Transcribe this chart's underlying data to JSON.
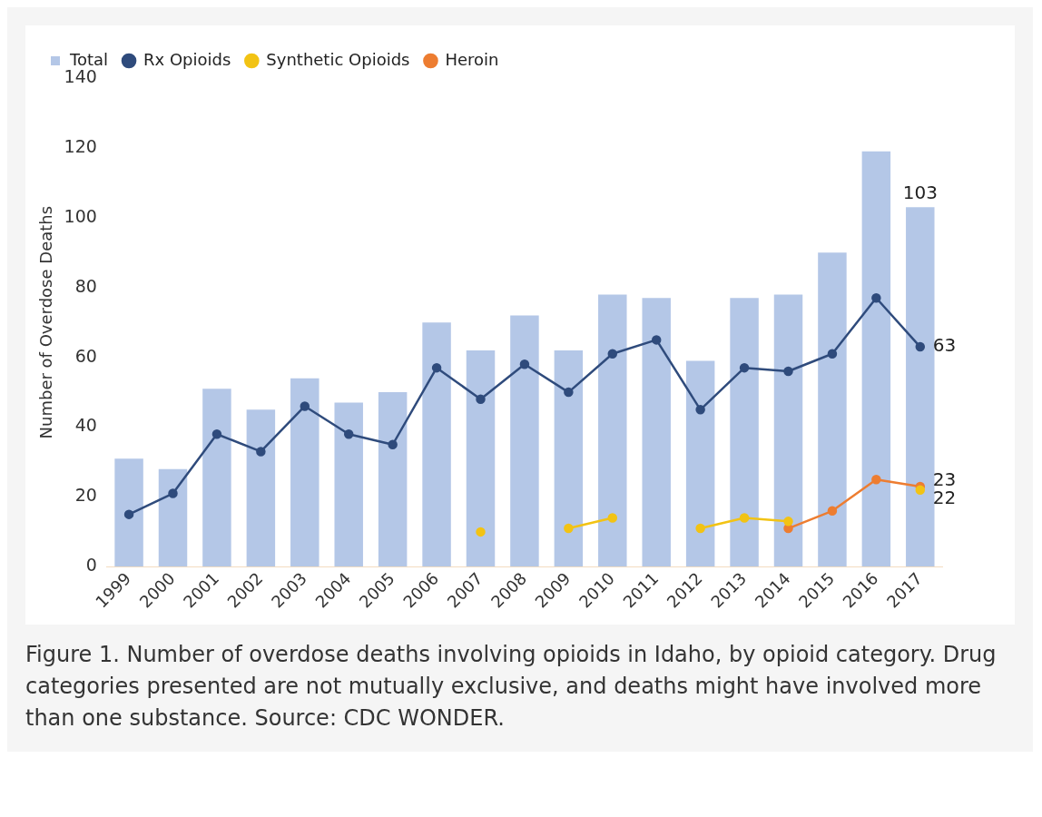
{
  "chart_data": {
    "type": "bar",
    "ylabel": "Number of Overdose Deaths",
    "categories": [
      "1999",
      "2000",
      "2001",
      "2002",
      "2003",
      "2004",
      "2005",
      "2006",
      "2007",
      "2008",
      "2009",
      "2010",
      "2011",
      "2012",
      "2013",
      "2014",
      "2015",
      "2016",
      "2017"
    ],
    "series": [
      {
        "name": "Total",
        "color": "#b4c7e7",
        "values": [
          31,
          28,
          51,
          45,
          54,
          47,
          50,
          70,
          62,
          72,
          62,
          78,
          77,
          59,
          77,
          78,
          90,
          119,
          103
        ],
        "value_labels": [
          null,
          null,
          null,
          null,
          null,
          null,
          null,
          null,
          null,
          null,
          null,
          null,
          null,
          null,
          null,
          null,
          null,
          null,
          "103"
        ]
      },
      {
        "name": "Rx Opioids",
        "type": "line",
        "color": "#2f4b7c",
        "values": [
          15,
          21,
          38,
          33,
          46,
          38,
          35,
          57,
          48,
          58,
          50,
          61,
          65,
          45,
          57,
          56,
          61,
          77,
          63
        ],
        "value_labels": [
          null,
          null,
          null,
          null,
          null,
          null,
          null,
          null,
          null,
          null,
          null,
          null,
          null,
          null,
          null,
          null,
          null,
          null,
          "63"
        ]
      },
      {
        "name": "Synthetic Opioids",
        "type": "line",
        "color": "#f2c314",
        "values": [
          null,
          null,
          null,
          null,
          null,
          null,
          null,
          null,
          10,
          null,
          11,
          14,
          null,
          11,
          14,
          13,
          null,
          null,
          22
        ],
        "value_labels": [
          null,
          null,
          null,
          null,
          null,
          null,
          null,
          null,
          null,
          null,
          null,
          null,
          null,
          null,
          null,
          null,
          null,
          null,
          "22"
        ]
      },
      {
        "name": "Heroin",
        "type": "line",
        "color": "#ed7d31",
        "values": [
          null,
          null,
          null,
          null,
          null,
          null,
          null,
          null,
          null,
          null,
          null,
          null,
          null,
          null,
          null,
          11,
          16,
          25,
          23
        ],
        "value_labels": [
          null,
          null,
          null,
          null,
          null,
          null,
          null,
          null,
          null,
          null,
          null,
          null,
          null,
          null,
          null,
          null,
          null,
          null,
          "23"
        ]
      }
    ],
    "ylim": [
      0,
      140
    ],
    "yticks": [
      0,
      20,
      40,
      60,
      80,
      100,
      120,
      140
    ],
    "grid": false,
    "legend": "top left",
    "marker": "circle",
    "annotations": [
      "Figure 1. Number of overdose deaths involving opioids in Idaho, by opioid category. Drug categories presented are not mutually exclusive, and deaths might have involved more than one substance. Source: CDC WONDER."
    ]
  }
}
